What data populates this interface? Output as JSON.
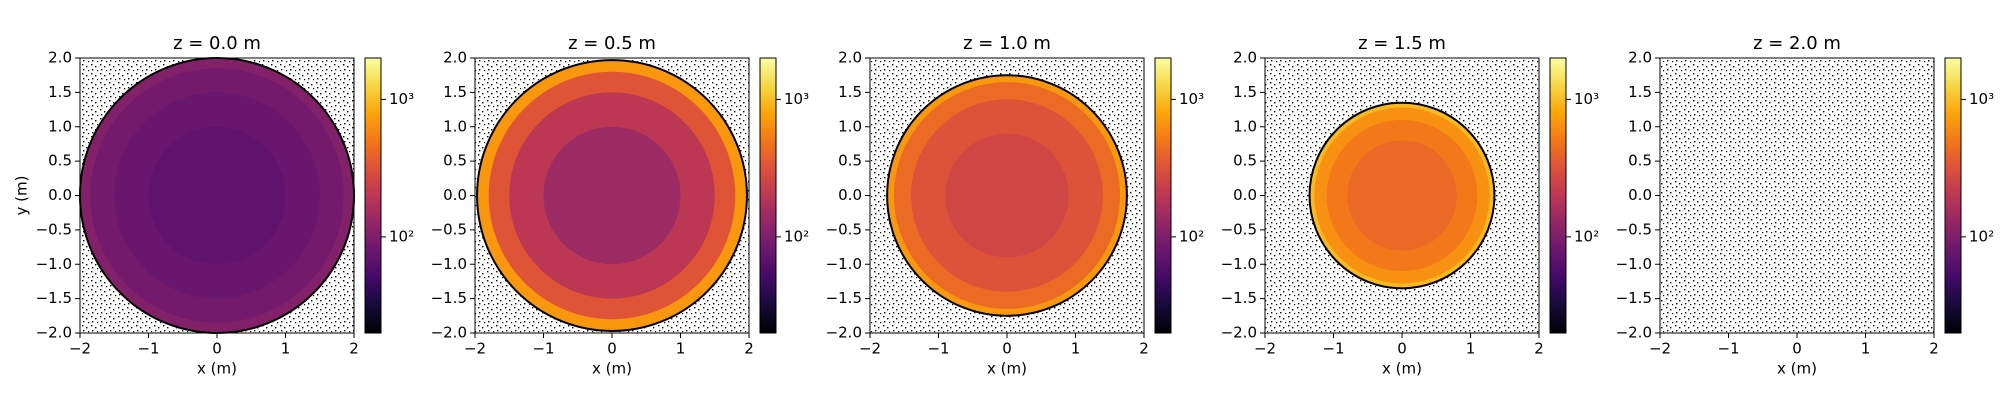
{
  "chart_data": [
    {
      "type": "heatmap",
      "title": "z = 0.0 m",
      "xlabel": "x (m)",
      "ylabel": "y (m)",
      "xlim": [
        -2,
        2
      ],
      "ylim": [
        -2,
        2
      ],
      "xticks": [
        {
          "value": -2,
          "label": "−2"
        },
        {
          "value": -1,
          "label": "−1"
        },
        0,
        1,
        2
      ],
      "yticks": [
        {
          "value": -2,
          "label": "−2.0"
        },
        {
          "value": -1.5,
          "label": "−1.5"
        },
        {
          "value": -1,
          "label": "−1.0"
        },
        {
          "value": -0.5,
          "label": "−0.5"
        },
        {
          "value": 0,
          "label": "0.0"
        },
        0.5,
        {
          "value": 1,
          "label": "1.0"
        },
        1.5,
        {
          "value": 2,
          "label": "2.0"
        }
      ],
      "r_edges": [
        0,
        1,
        1.5,
        1.85,
        2.0
      ],
      "values": [
        70,
        78,
        88,
        105
      ],
      "colormap": "inferno",
      "clim": [
        20,
        2000
      ],
      "color_scale": "log",
      "cticks": [
        {
          "value": 100,
          "label": "10²"
        },
        {
          "value": 1000,
          "label": "10³"
        }
      ]
    },
    {
      "type": "heatmap",
      "title": "z = 0.5 m",
      "xlabel": "x (m)",
      "xlim": [
        -2,
        2
      ],
      "ylim": [
        -2,
        2
      ],
      "xticks": [
        {
          "value": -2,
          "label": "−2"
        },
        {
          "value": -1,
          "label": "−1"
        },
        0,
        1,
        2
      ],
      "yticks": [
        {
          "value": -2,
          "label": "−2.0"
        },
        {
          "value": -1.5,
          "label": "−1.5"
        },
        {
          "value": -1,
          "label": "−1.0"
        },
        {
          "value": -0.5,
          "label": "−0.5"
        },
        {
          "value": 0,
          "label": "0.0"
        },
        0.5,
        {
          "value": 1,
          "label": "1.0"
        },
        1.5,
        {
          "value": 2,
          "label": "2.0"
        }
      ],
      "r_edges": [
        0,
        1,
        1.5,
        1.8,
        1.97
      ],
      "values": [
        140,
        200,
        330,
        700
      ],
      "colormap": "inferno",
      "clim": [
        20,
        2000
      ],
      "color_scale": "log",
      "cticks": [
        {
          "value": 100,
          "label": "10²"
        },
        {
          "value": 1000,
          "label": "10³"
        }
      ]
    },
    {
      "type": "heatmap",
      "title": "z = 1.0 m",
      "xlabel": "x (m)",
      "xlim": [
        -2,
        2
      ],
      "ylim": [
        -2,
        2
      ],
      "xticks": [
        {
          "value": -2,
          "label": "−2"
        },
        {
          "value": -1,
          "label": "−1"
        },
        0,
        1,
        2
      ],
      "yticks": [
        {
          "value": -2,
          "label": "−2.0"
        },
        {
          "value": -1.5,
          "label": "−1.5"
        },
        {
          "value": -1,
          "label": "−1.0"
        },
        {
          "value": -0.5,
          "label": "−0.5"
        },
        {
          "value": 0,
          "label": "0.0"
        },
        0.5,
        {
          "value": 1,
          "label": "1.0"
        },
        1.5,
        {
          "value": 2,
          "label": "2.0"
        }
      ],
      "r_edges": [
        0,
        0.9,
        1.4,
        1.65,
        1.75
      ],
      "values": [
        260,
        320,
        430,
        700
      ],
      "colormap": "inferno",
      "clim": [
        20,
        2000
      ],
      "color_scale": "log",
      "cticks": [
        {
          "value": 100,
          "label": "10²"
        },
        {
          "value": 1000,
          "label": "10³"
        }
      ]
    },
    {
      "type": "heatmap",
      "title": "z = 1.5 m",
      "xlabel": "x (m)",
      "xlim": [
        -2,
        2
      ],
      "ylim": [
        -2,
        2
      ],
      "xticks": [
        {
          "value": -2,
          "label": "−2"
        },
        {
          "value": -1,
          "label": "−1"
        },
        0,
        1,
        2
      ],
      "yticks": [
        {
          "value": -2,
          "label": "−2.0"
        },
        {
          "value": -1.5,
          "label": "−1.5"
        },
        {
          "value": -1,
          "label": "−1.0"
        },
        {
          "value": -0.5,
          "label": "−0.5"
        },
        {
          "value": 0,
          "label": "0.0"
        },
        0.5,
        {
          "value": 1,
          "label": "1.0"
        },
        1.5,
        {
          "value": 2,
          "label": "2.0"
        }
      ],
      "r_edges": [
        0,
        0.8,
        1.1,
        1.28,
        1.35
      ],
      "values": [
        420,
        500,
        650,
        950
      ],
      "colormap": "inferno",
      "clim": [
        20,
        2000
      ],
      "color_scale": "log",
      "cticks": [
        {
          "value": 100,
          "label": "10²"
        },
        {
          "value": 1000,
          "label": "10³"
        }
      ]
    },
    {
      "type": "heatmap",
      "title": "z = 2.0 m",
      "xlabel": "x (m)",
      "xlim": [
        -2,
        2
      ],
      "ylim": [
        -2,
        2
      ],
      "xticks": [
        {
          "value": -2,
          "label": "−2"
        },
        {
          "value": -1,
          "label": "−1"
        },
        0,
        1,
        2
      ],
      "yticks": [
        {
          "value": -2,
          "label": "−2.0"
        },
        {
          "value": -1.5,
          "label": "−1.5"
        },
        {
          "value": -1,
          "label": "−1.0"
        },
        {
          "value": -0.5,
          "label": "−0.5"
        },
        {
          "value": 0,
          "label": "0.0"
        },
        0.5,
        {
          "value": 1,
          "label": "1.0"
        },
        1.5,
        {
          "value": 2,
          "label": "2.0"
        }
      ],
      "colormap": "inferno",
      "clim": [
        20,
        2000
      ],
      "color_scale": "log",
      "cticks": [
        {
          "value": 100,
          "label": "10²"
        },
        {
          "value": 1000,
          "label": "10³"
        }
      ]
    }
  ]
}
